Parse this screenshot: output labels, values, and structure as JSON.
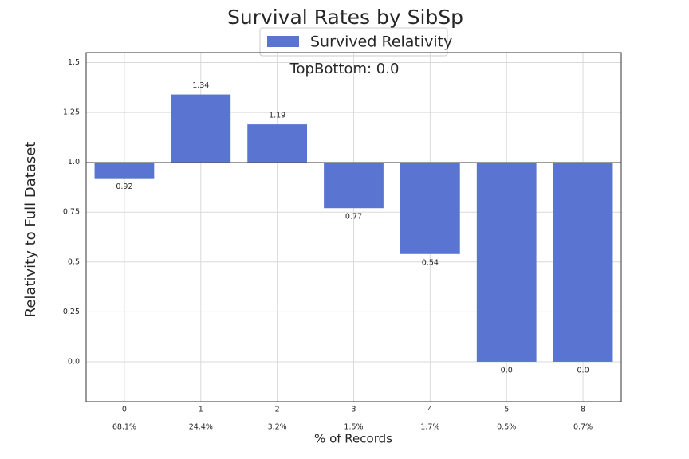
{
  "chart_data": {
    "type": "bar",
    "title": "Survival Rates by SibSp",
    "xlabel": "% of Records",
    "ylabel": "Relativity to Full Dataset",
    "annotation": "TopBottom: 0.0",
    "categories": [
      "0",
      "1",
      "2",
      "3",
      "4",
      "5",
      "8"
    ],
    "record_pct": [
      "68.1%",
      "24.4%",
      "3.2%",
      "1.5%",
      "1.7%",
      "0.5%",
      "0.7%"
    ],
    "series": [
      {
        "name": "Survived Relativity",
        "values": [
          0.92,
          1.34,
          1.19,
          0.77,
          0.54,
          0.0,
          0.0
        ],
        "labels": [
          "0.92",
          "1.34",
          "1.19",
          "0.77",
          "0.54",
          "0.0",
          "0.0"
        ],
        "color": "#5975d1"
      }
    ],
    "baseline": 1.0,
    "ylim": [
      -0.2,
      1.55
    ],
    "yticks": [
      0.0,
      0.25,
      0.5,
      0.75,
      1.0,
      1.25,
      1.5
    ],
    "ytick_labels": [
      "0.0",
      "0.25",
      "0.5",
      "0.75",
      "1.0",
      "1.25",
      "1.5"
    ],
    "grid": true,
    "legend_position": "top-center"
  }
}
